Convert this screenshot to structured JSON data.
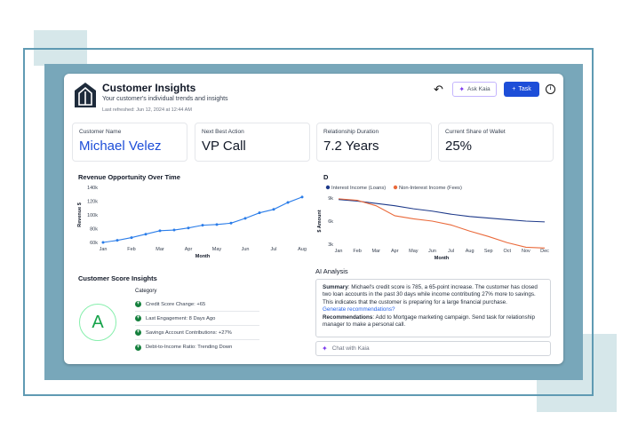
{
  "header": {
    "title": "Customer Insights",
    "subtitle": "Your customer's individual trends and insights",
    "last_refreshed": "Last refreshed: Jun 12, 2024 at 12:44 AM",
    "ask_label": "Ask Kaia",
    "task_label": "Task"
  },
  "metrics": [
    {
      "label": "Customer Name",
      "value": "Michael Velez"
    },
    {
      "label": "Next Best Action",
      "value": "VP Call"
    },
    {
      "label": "Relationship Duration",
      "value": "7.2 Years"
    },
    {
      "label": "Current Share of Wallet",
      "value": "25%"
    }
  ],
  "chart_data": [
    {
      "type": "line",
      "title": "Revenue Opportunity Over Time",
      "xlabel": "Month",
      "ylabel": "Revenue $",
      "categories": [
        "Jan",
        "Feb",
        "Mar",
        "Apr",
        "May",
        "Jun",
        "Jul",
        "Aug"
      ],
      "x": [
        0,
        0.5,
        1,
        1.5,
        2,
        2.5,
        3,
        3.5,
        4,
        4.5,
        5,
        5.5,
        6,
        6.5,
        7
      ],
      "series": [
        {
          "values": [
            60000,
            63000,
            67000,
            72000,
            77000,
            78000,
            81000,
            85000,
            86000,
            88000,
            95000,
            103000,
            108000,
            118000,
            126000
          ],
          "color": "#2b7de9"
        }
      ],
      "yticks": [
        "140k",
        "120k",
        "100k",
        "80k",
        "60k"
      ],
      "ylim": [
        60000,
        140000
      ]
    },
    {
      "type": "line",
      "title": "D",
      "xlabel": "Month",
      "ylabel": "$ Amount",
      "categories": [
        "Jan",
        "Feb",
        "Mar",
        "Apr",
        "May",
        "Jun",
        "Jul",
        "Aug",
        "Sep",
        "Oct",
        "Nov",
        "Dec"
      ],
      "series": [
        {
          "name": "Interest Income (Loans)",
          "color": "#1e3a8a",
          "values": [
            8800,
            8600,
            8300,
            8000,
            7600,
            7300,
            6900,
            6600,
            6400,
            6200,
            6000,
            5900
          ]
        },
        {
          "name": "Non-Interest Income (Fees)",
          "color": "#ea6a3b",
          "values": [
            8900,
            8700,
            8000,
            6700,
            6300,
            6000,
            5500,
            4700,
            4000,
            3200,
            2600,
            2500
          ]
        }
      ],
      "yticks": [
        "9k",
        "6k",
        "3k"
      ],
      "ylim": [
        3000,
        9000
      ]
    }
  ],
  "score": {
    "title": "Customer Score Insights",
    "grade": "A",
    "category_header": "Category",
    "items": [
      "Credit Score Change: +65",
      "Last Engagement: 8 Days Ago",
      "Savings Account Contributions: +27%",
      "Debt-to-Income Ratio: Trending Down"
    ]
  },
  "ai": {
    "title": "AI Analysis",
    "summary_label": "Summary",
    "summary_text": ": Michael's credit score is 785, a 65-point increase. The customer has closed two loan accounts in the past 30 days while income contributing 27% more to savings. This indicates that the customer is preparing for a large financial purchase.",
    "link": "Generate recommendations?",
    "rec_label": "Recommendations",
    "rec_text": ": Add to Mortgage marketing campaign. Send task for relationship manager to make a personal call.",
    "chat_placeholder": "Chat with Kaia"
  }
}
